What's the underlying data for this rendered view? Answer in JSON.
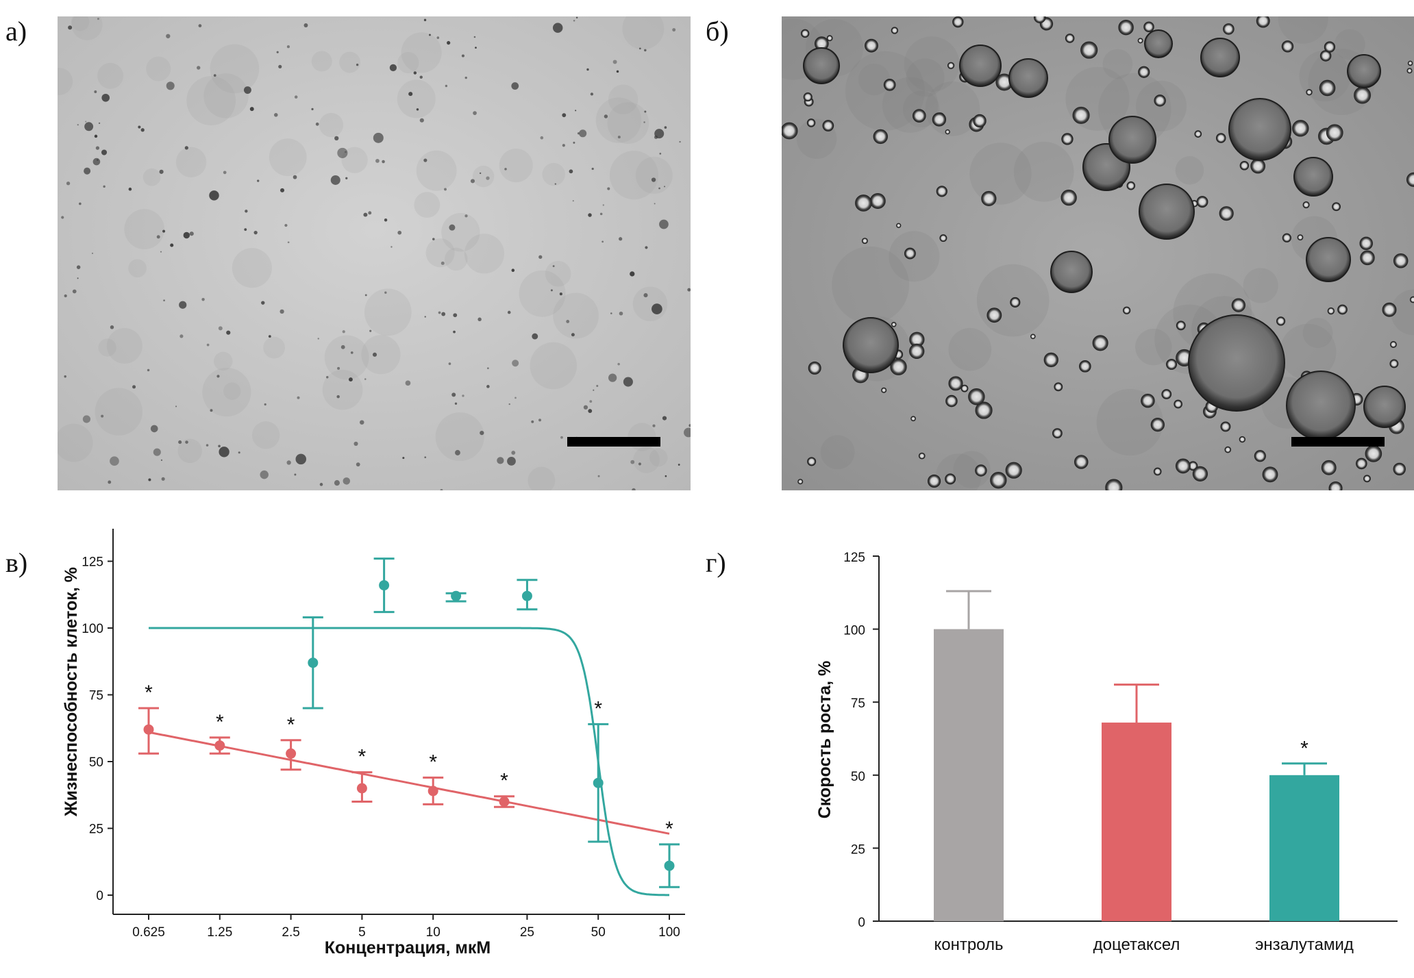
{
  "panels": {
    "a": {
      "letter": "а)"
    },
    "b": {
      "letter": "б)"
    },
    "v": {
      "letter": "в)"
    },
    "g": {
      "letter": "г)"
    }
  },
  "colors": {
    "red": "#e06468",
    "teal": "#33a79f",
    "gray": "#a8a5a5",
    "axis": "#222222"
  },
  "chart_data": [
    {
      "panel": "в",
      "type": "scatter",
      "xlabel": "Концентрация, мкМ",
      "ylabel": "Жизнеспособность клеток, %",
      "x_scale": "log",
      "x_ticks": [
        "0.625",
        "1.25",
        "2.5",
        "5",
        "10",
        "25",
        "50",
        "100"
      ],
      "x_tick_values": [
        0.625,
        1.25,
        2.5,
        5,
        10,
        25,
        50,
        100
      ],
      "y_ticks": [
        0,
        25,
        50,
        75,
        100,
        125
      ],
      "ylim": [
        -7,
        136
      ],
      "series": [
        {
          "color": "red",
          "points": [
            {
              "x": 0.625,
              "y": 62,
              "low": 53,
              "high": 70,
              "star": "*"
            },
            {
              "x": 1.25,
              "y": 56,
              "low": 53,
              "high": 59,
              "star": "*"
            },
            {
              "x": 2.5,
              "y": 53,
              "low": 47,
              "high": 58,
              "star": "*"
            },
            {
              "x": 5,
              "y": 40,
              "low": 35,
              "high": 46,
              "star": "*"
            },
            {
              "x": 10,
              "y": 39,
              "low": 34,
              "high": 44,
              "star": "*"
            },
            {
              "x": 20,
              "y": 35,
              "low": 33,
              "high": 37,
              "star": "*"
            }
          ],
          "fit": {
            "kind": "linear_log",
            "from": 0.625,
            "to": 100,
            "y_from": 61,
            "y_to": 23
          }
        },
        {
          "color": "teal",
          "points": [
            {
              "x": 3.1,
              "y": 87,
              "low": 70,
              "high": 104
            },
            {
              "x": 6.2,
              "y": 116,
              "low": 106,
              "high": 126
            },
            {
              "x": 12.5,
              "y": 112,
              "low": 110,
              "high": 113
            },
            {
              "x": 25,
              "y": 112,
              "low": 107,
              "high": 118
            },
            {
              "x": 50,
              "y": 42,
              "low": 20,
              "high": 64,
              "star": "*"
            },
            {
              "x": 100,
              "y": 11,
              "low": 3,
              "high": 19,
              "star": "*"
            }
          ],
          "fit": {
            "kind": "hill",
            "top": 100,
            "bottom": 0,
            "ic50": 50,
            "slope": 12,
            "from": 0.625,
            "to": 100
          }
        }
      ]
    },
    {
      "panel": "г",
      "type": "bar",
      "ylabel": "Скорость роста, %",
      "categories": [
        "контроль",
        "доцетаксел",
        "энзалутамид"
      ],
      "values": [
        100,
        68,
        50
      ],
      "errors": [
        13,
        13,
        4
      ],
      "bar_colors": [
        "gray",
        "red",
        "teal"
      ],
      "stars": [
        "",
        "",
        "*"
      ],
      "y_ticks": [
        0,
        25,
        50,
        75,
        100,
        125
      ],
      "ylim": [
        0,
        125
      ]
    }
  ]
}
